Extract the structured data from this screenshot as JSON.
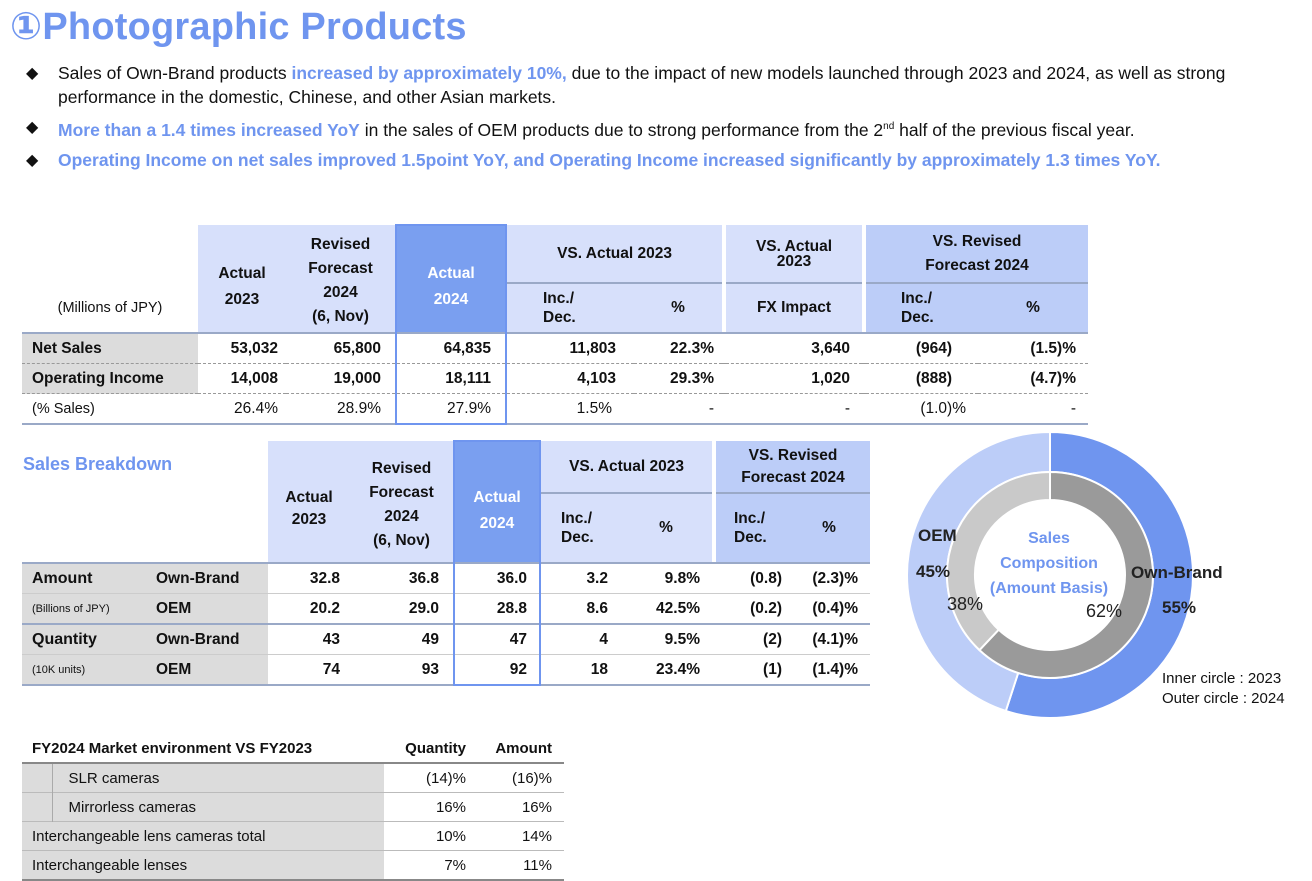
{
  "title": "①Photographic Products",
  "bullets": [
    {
      "pre": "Sales of Own-Brand products ",
      "hl": "increased by approximately 10%,",
      "post": " due to the impact of new models launched through 2023 and 2024, as well as strong performance in the domestic, Chinese, and other Asian markets."
    },
    {
      "pre": "",
      "hl": "More than a 1.4 times increased YoY",
      "post": " in the sales of OEM products due to strong performance from the 2",
      "sup": "nd",
      "post2": " half of the previous fiscal year."
    },
    {
      "pre": "",
      "hl": "Operating Income on net sales improved 1.5point YoY, and Operating Income increased significantly by approximately 1.3 times YoY.",
      "post": ""
    }
  ],
  "main_table": {
    "unit": "(Millions of JPY)",
    "headers": {
      "actual2023": [
        "Actual",
        "2023"
      ],
      "revised": [
        "Revised",
        "Forecast",
        "2024",
        "(6, Nov)"
      ],
      "actual2024": [
        "Actual",
        "2024"
      ],
      "vs_actual": "VS. Actual 2023",
      "vs_actual_fx": [
        "VS. Actual",
        "2023"
      ],
      "vs_revised": [
        "VS. Revised",
        "Forecast 2024"
      ],
      "inc_dec": [
        "Inc./",
        "Dec."
      ],
      "pct": "%",
      "fx": "FX Impact"
    },
    "rows": [
      {
        "label": "Net Sales",
        "a2023": "53,032",
        "rev": "65,800",
        "a2024": "64,835",
        "inc": "11,803",
        "pct": "22.3%",
        "fx": "3,640",
        "rinc": "(964)",
        "rpct": "(1.5)%"
      },
      {
        "label": "Operating Income",
        "a2023": "14,008",
        "rev": "19,000",
        "a2024": "18,111",
        "inc": "4,103",
        "pct": "29.3%",
        "fx": "1,020",
        "rinc": "(888)",
        "rpct": "(4.7)%"
      },
      {
        "label": "(% Sales)",
        "a2023": "26.4%",
        "rev": "28.9%",
        "a2024": "27.9%",
        "inc": "1.5%",
        "pct": "-",
        "fx": "-",
        "rinc": "(1.0)%",
        "rpct": "-"
      }
    ]
  },
  "sales_breakdown": {
    "title": "Sales Breakdown",
    "headers": {
      "actual2023": [
        "Actual",
        "2023"
      ],
      "revised": [
        "Revised",
        "Forecast",
        "2024",
        "(6, Nov)"
      ],
      "actual2024": [
        "Actual",
        "2024"
      ],
      "vs_actual": "VS.  Actual 2023",
      "vs_revised": [
        "VS. Revised",
        "Forecast 2024"
      ],
      "inc_dec": [
        "Inc./",
        "Dec."
      ],
      "pct": "%"
    },
    "groups": [
      {
        "label": "Amount",
        "sub": "(Billions of JPY)",
        "rows": [
          {
            "type": "Own-Brand",
            "a2023": "32.8",
            "rev": "36.8",
            "a2024": "36.0",
            "inc": "3.2",
            "pct": "9.8%",
            "rinc": "(0.8)",
            "rpct": "(2.3)%"
          },
          {
            "type": "OEM",
            "a2023": "20.2",
            "rev": "29.0",
            "a2024": "28.8",
            "inc": "8.6",
            "pct": "42.5%",
            "rinc": "(0.2)",
            "rpct": "(0.4)%"
          }
        ]
      },
      {
        "label": "Quantity",
        "sub": "(10K units)",
        "rows": [
          {
            "type": "Own-Brand",
            "a2023": "43",
            "rev": "49",
            "a2024": "47",
            "inc": "4",
            "pct": "9.5%",
            "rinc": "(2)",
            "rpct": "(4.1)%"
          },
          {
            "type": "OEM",
            "a2023": "74",
            "rev": "93",
            "a2024": "92",
            "inc": "18",
            "pct": "23.4%",
            "rinc": "(1)",
            "rpct": "(1.4)%"
          }
        ]
      }
    ]
  },
  "market_env": {
    "title": "FY2024 Market environment VS FY2023",
    "col_quantity": "Quantity",
    "col_amount": "Amount",
    "rows": [
      {
        "label": "SLR cameras",
        "quantity": "(14)%",
        "amount": "(16)%",
        "indent": true
      },
      {
        "label": "Mirrorless cameras",
        "quantity": "16%",
        "amount": "16%",
        "indent": true
      },
      {
        "label": "Interchangeable lens cameras total",
        "quantity": "10%",
        "amount": "14%",
        "indent": false
      },
      {
        "label": "Interchangeable lenses",
        "quantity": "7%",
        "amount": "11%",
        "indent": false
      }
    ]
  },
  "chart_data": {
    "type": "pie",
    "title": "",
    "center_label": [
      "Sales",
      "Composition",
      "(Amount Basis)"
    ],
    "categories": [
      "Own-Brand",
      "OEM"
    ],
    "series": [
      {
        "name": "2024",
        "ring": "outer",
        "values": [
          55,
          45
        ],
        "labels": [
          "55%",
          "45%"
        ]
      },
      {
        "name": "2023",
        "ring": "inner",
        "values": [
          62,
          38
        ],
        "labels": [
          "62%",
          "38%"
        ]
      }
    ],
    "colors": {
      "outer_own": "#6f95ef",
      "outer_oem": "#bccdf8",
      "inner_own": "#9a9a9a",
      "inner_oem": "#c9c9c9"
    },
    "legend": [
      "Inner circle : 2023",
      "Outer circle : 2024"
    ]
  }
}
